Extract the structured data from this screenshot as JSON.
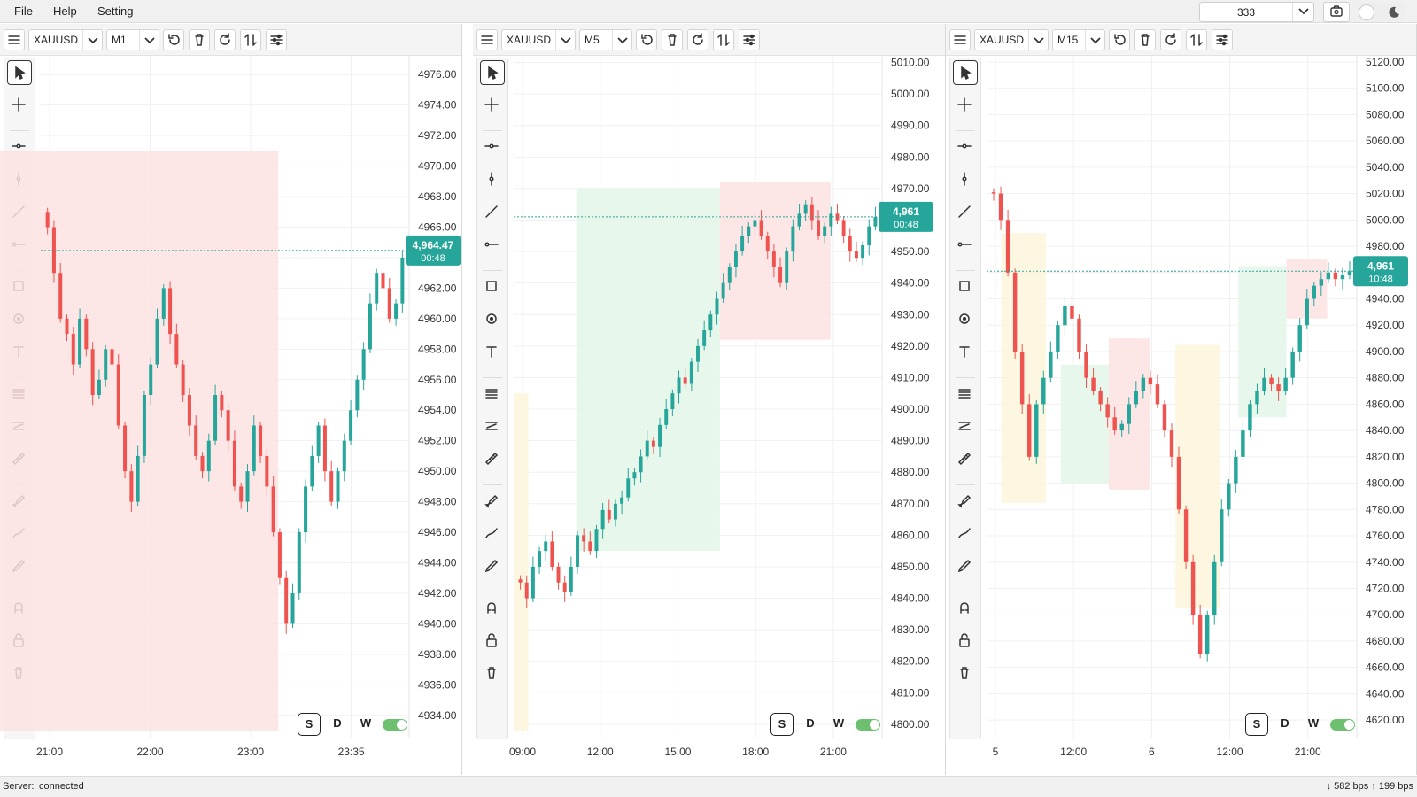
{
  "menu": {
    "file": "File",
    "help": "Help",
    "setting": "Setting"
  },
  "topright": {
    "number_value": "333"
  },
  "status": {
    "label": "Server:",
    "value": "connected",
    "traffic": "↓ 582 bps ↑ 199 bps"
  },
  "icons": [
    "hamburger-icon",
    "undo-icon",
    "trash-icon",
    "refresh-icon",
    "swap-icon",
    "settings-icon",
    "cursor-icon",
    "crosshair-icon",
    "hline-icon",
    "vline-icon",
    "trendline-icon",
    "ray-icon",
    "rectangle-icon",
    "circle-icon",
    "text-icon",
    "fib-icon",
    "channel-icon",
    "ruler-icon",
    "brush-icon",
    "path-icon",
    "pen-icon",
    "magnet-icon",
    "lock-icon",
    "delete-icon"
  ],
  "colors": {
    "bull": "#26a69a",
    "bear": "#ef5350",
    "accent": "#26a69a",
    "zone_red": "#fde2e2",
    "zone_green": "#e3f6e8",
    "zone_yellow": "#fdf5dc"
  },
  "period_buttons": {
    "s": "S",
    "d": "D",
    "w": "W"
  },
  "panes": [
    {
      "symbol": "XAUUSD",
      "timeframe": "M1",
      "price_ticks": [
        "4976.00",
        "4974.00",
        "4972.00",
        "4970.00",
        "4968.00",
        "4966.00",
        "4964.00",
        "4962.00",
        "4960.00",
        "4958.00",
        "4956.00",
        "4954.00",
        "4952.00",
        "4950.00",
        "4948.00",
        "4946.00",
        "4944.00",
        "4942.00",
        "4940.00",
        "4938.00",
        "4936.00",
        "4934.00"
      ],
      "time_ticks": [
        "21:00",
        "22:00",
        "23:00",
        "23:35"
      ],
      "price_label": "4,964.47",
      "countdown": "00:48",
      "chart_data": {
        "type": "candlestick",
        "symbol": "XAUUSD",
        "timeframe": "M1",
        "ylim": [
          4933,
          4977
        ],
        "last": 4964.47,
        "closes": [
          4966,
          4963,
          4960,
          4959,
          4957,
          4960,
          4958,
          4955,
          4956,
          4958,
          4957,
          4953,
          4950,
          4948,
          4951,
          4955,
          4957,
          4960,
          4962,
          4959,
          4957,
          4955,
          4953,
          4951,
          4950,
          4952,
          4955,
          4954,
          4952,
          4949,
          4948,
          4950,
          4953,
          4951,
          4949,
          4946,
          4943,
          4940,
          4942,
          4946,
          4949,
          4951,
          4953,
          4950,
          4948,
          4950,
          4952,
          4954,
          4956,
          4958,
          4961,
          4963,
          4962,
          4960,
          4961,
          4964
        ]
      }
    },
    {
      "symbol": "XAUUSD",
      "timeframe": "M5",
      "price_ticks": [
        "5010.00",
        "5000.00",
        "4990.00",
        "4980.00",
        "4970.00",
        "4960.00",
        "4950.00",
        "4940.00",
        "4930.00",
        "4920.00",
        "4910.00",
        "4900.00",
        "4890.00",
        "4880.00",
        "4870.00",
        "4860.00",
        "4850.00",
        "4840.00",
        "4830.00",
        "4820.00",
        "4810.00",
        "4800.00"
      ],
      "time_ticks": [
        "09:00",
        "12:00",
        "15:00",
        "18:00",
        "21:00"
      ],
      "price_label": "4,961",
      "countdown": "00:48",
      "chart_data": {
        "type": "candlestick",
        "symbol": "XAUUSD",
        "timeframe": "M5",
        "ylim": [
          4798,
          5011
        ],
        "last": 4961,
        "closes": [
          4845,
          4840,
          4850,
          4855,
          4858,
          4850,
          4845,
          4842,
          4850,
          4860,
          4858,
          4855,
          4862,
          4868,
          4865,
          4870,
          4872,
          4878,
          4880,
          4885,
          4890,
          4888,
          4895,
          4900,
          4905,
          4910,
          4908,
          4915,
          4920,
          4925,
          4930,
          4935,
          4940,
          4945,
          4950,
          4955,
          4958,
          4960,
          4955,
          4950,
          4945,
          4940,
          4950,
          4958,
          4962,
          4965,
          4960,
          4955,
          4958,
          4962,
          4960,
          4955,
          4950,
          4948,
          4952,
          4958,
          4961
        ]
      }
    },
    {
      "symbol": "XAUUSD",
      "timeframe": "M15",
      "price_ticks": [
        "5120.00",
        "5100.00",
        "5080.00",
        "5060.00",
        "5040.00",
        "5020.00",
        "5000.00",
        "4980.00",
        "4960.00",
        "4940.00",
        "4920.00",
        "4900.00",
        "4880.00",
        "4860.00",
        "4840.00",
        "4820.00",
        "4800.00",
        "4780.00",
        "4760.00",
        "4740.00",
        "4720.00",
        "4700.00",
        "4680.00",
        "4660.00",
        "4640.00",
        "4620.00"
      ],
      "time_ticks": [
        "5",
        "12:00",
        "6",
        "12:00",
        "21:00"
      ],
      "price_label": "4,961",
      "countdown": "10:48",
      "chart_data": {
        "type": "candlestick",
        "symbol": "XAUUSD",
        "timeframe": "M15",
        "ylim": [
          4612,
          5122
        ],
        "last": 4961,
        "closes": [
          5020,
          5000,
          4960,
          4900,
          4860,
          4820,
          4860,
          4880,
          4900,
          4920,
          4935,
          4925,
          4900,
          4880,
          4870,
          4860,
          4850,
          4840,
          4845,
          4860,
          4870,
          4880,
          4875,
          4860,
          4840,
          4820,
          4780,
          4740,
          4700,
          4670,
          4700,
          4740,
          4780,
          4800,
          4820,
          4840,
          4860,
          4870,
          4880,
          4875,
          4870,
          4880,
          4900,
          4920,
          4940,
          4950,
          4955,
          4960,
          4955,
          4958,
          4961
        ]
      }
    }
  ]
}
